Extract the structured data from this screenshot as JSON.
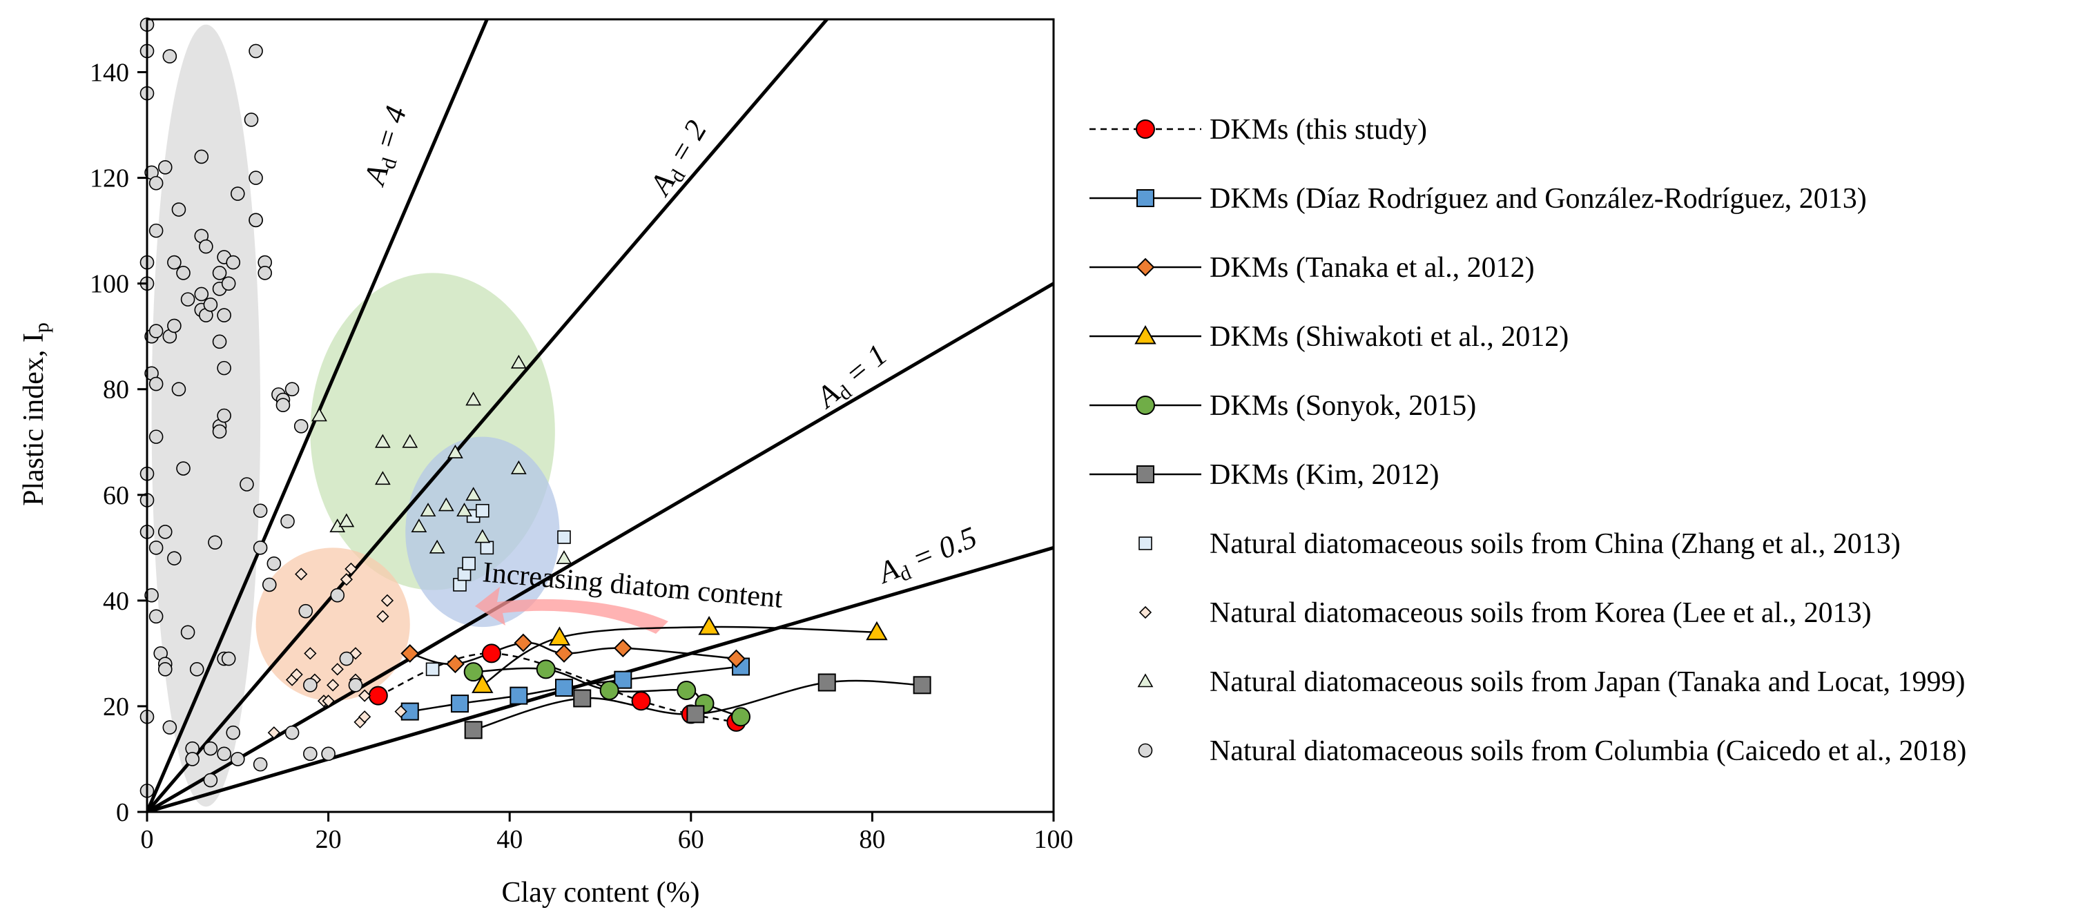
{
  "chart_data": {
    "type": "scatter",
    "xlabel": "Clay content (%)",
    "ylabel": "Plastic index, I",
    "ylabel_sub": "p",
    "xlim": [
      0,
      100
    ],
    "ylim": [
      0,
      150
    ],
    "xticks": [
      "0",
      "20",
      "40",
      "60",
      "80",
      "100"
    ],
    "yticks": [
      "0",
      "20",
      "40",
      "60",
      "80",
      "100",
      "120",
      "140"
    ],
    "activity_lines": [
      {
        "name": "ad-4",
        "slope": 4,
        "label": "A",
        "sub": "d",
        "rest": " = 4"
      },
      {
        "name": "ad-2",
        "slope": 2,
        "label": "A",
        "sub": "d",
        "rest": " = 2"
      },
      {
        "name": "ad-1",
        "slope": 1,
        "label": "A",
        "sub": "d",
        "rest": " = 1"
      },
      {
        "name": "ad-0-5",
        "slope": 0.5,
        "label": "A",
        "sub": "d",
        "rest": " = 0.5"
      }
    ],
    "annotation": "Increasing diatom content",
    "shaded_regions": [
      {
        "name": "columbia-region",
        "cx": 6.5,
        "cy": 75,
        "rx": 6,
        "ry": 74,
        "color": "#d9d9d9"
      },
      {
        "name": "japan-region",
        "cx": 31.5,
        "cy": 72,
        "rx": 13.5,
        "ry": 30,
        "color": "#c9e3b8"
      },
      {
        "name": "china-region",
        "cx": 37,
        "cy": 53,
        "rx": 8.5,
        "ry": 18,
        "color": "#b4c7e7"
      },
      {
        "name": "korea-region",
        "cx": 20.5,
        "cy": 35.5,
        "rx": 8.5,
        "ry": 14.5,
        "color": "#f8cbad"
      }
    ],
    "series": [
      {
        "name": "DKMs (this study)",
        "marker": "circle",
        "fill": "#ff0000",
        "line": "dashed",
        "points": [
          [
            25.5,
            22
          ],
          [
            38,
            30
          ],
          [
            54.5,
            21
          ],
          [
            60,
            18.5
          ],
          [
            65,
            17
          ]
        ]
      },
      {
        "name": "DKMs (Díaz Rodríguez and González-Rodríguez, 2013)",
        "marker": "square",
        "fill": "#5b9bd5",
        "line": "solid",
        "points": [
          [
            29,
            19
          ],
          [
            34.5,
            20.5
          ],
          [
            41,
            22
          ],
          [
            46,
            23.5
          ],
          [
            52.5,
            25
          ],
          [
            65.5,
            27.5
          ]
        ]
      },
      {
        "name": "DKMs (Tanaka et al., 2012)",
        "marker": "diamond",
        "fill": "#ed7d31",
        "line": "solid",
        "points": [
          [
            29,
            30
          ],
          [
            34,
            28
          ],
          [
            41.5,
            32
          ],
          [
            46,
            30
          ],
          [
            52.5,
            31
          ],
          [
            65,
            29
          ]
        ]
      },
      {
        "name": "DKMs (Shiwakoti et al., 2012)",
        "marker": "triangle",
        "fill": "#ffc000",
        "line": "solid",
        "points": [
          [
            37,
            24
          ],
          [
            45.5,
            33
          ],
          [
            62,
            35
          ],
          [
            80.5,
            34
          ]
        ]
      },
      {
        "name": "DKMs (Sonyok, 2015)",
        "marker": "circle",
        "fill": "#70ad47",
        "line": "solid",
        "points": [
          [
            36,
            26.5
          ],
          [
            44,
            27
          ],
          [
            51,
            23
          ],
          [
            59.5,
            23
          ],
          [
            61.5,
            20.5
          ],
          [
            65.5,
            18
          ]
        ]
      },
      {
        "name": "DKMs (Kim, 2012)",
        "marker": "square",
        "fill": "#7f7f7f",
        "line": "solid",
        "points": [
          [
            36,
            15.5
          ],
          [
            48,
            21.5
          ],
          [
            60.5,
            18.5
          ],
          [
            75,
            24.5
          ],
          [
            85.5,
            24
          ]
        ]
      },
      {
        "name": "Natural diatomaceous soils from China (Zhang et al., 2013)",
        "marker": "square-small",
        "fill": "#ddebf7",
        "line": "none",
        "points": [
          [
            31.5,
            27
          ],
          [
            34.5,
            43
          ],
          [
            35,
            45
          ],
          [
            35.5,
            47
          ],
          [
            36,
            56
          ],
          [
            37,
            57
          ],
          [
            37.5,
            50
          ],
          [
            46,
            52
          ]
        ]
      },
      {
        "name": "Natural diatomaceous soils from Korea (Lee et al., 2013)",
        "marker": "diamond-small",
        "fill": "#fbe5d6",
        "line": "none",
        "points": [
          [
            14,
            15
          ],
          [
            16,
            25
          ],
          [
            16.5,
            26
          ],
          [
            17,
            45
          ],
          [
            18,
            30
          ],
          [
            18.5,
            25
          ],
          [
            19.5,
            21
          ],
          [
            20,
            21
          ],
          [
            20.5,
            24
          ],
          [
            21,
            27
          ],
          [
            22,
            29
          ],
          [
            22,
            44
          ],
          [
            22.5,
            46
          ],
          [
            23,
            25
          ],
          [
            23,
            30
          ],
          [
            23.5,
            17
          ],
          [
            24,
            18
          ],
          [
            24,
            22
          ],
          [
            26,
            37
          ],
          [
            26.5,
            40
          ],
          [
            28,
            19
          ]
        ]
      },
      {
        "name": "Natural diatomaceous soils from Japan (Tanaka and Locat, 1999)",
        "marker": "triangle-small",
        "fill": "#e2efda",
        "line": "none",
        "points": [
          [
            19,
            75
          ],
          [
            21,
            54
          ],
          [
            22,
            55
          ],
          [
            26,
            70
          ],
          [
            26,
            63
          ],
          [
            29,
            70
          ],
          [
            30,
            54
          ],
          [
            31,
            57
          ],
          [
            32,
            50
          ],
          [
            33,
            58
          ],
          [
            34,
            68
          ],
          [
            35,
            57
          ],
          [
            36,
            78
          ],
          [
            36,
            60
          ],
          [
            37,
            52
          ],
          [
            41,
            85
          ],
          [
            41,
            65
          ],
          [
            46,
            48
          ]
        ]
      },
      {
        "name": "Natural diatomaceous soils from Columbia (Caicedo et al., 2018)",
        "marker": "circle-small",
        "fill": "#d9d9d9",
        "line": "none",
        "points": [
          [
            0,
            149
          ],
          [
            0,
            144
          ],
          [
            0,
            136
          ],
          [
            0,
            104
          ],
          [
            0,
            100
          ],
          [
            0,
            64
          ],
          [
            0,
            59
          ],
          [
            0,
            53
          ],
          [
            0,
            18
          ],
          [
            0,
            4
          ],
          [
            0.5,
            121
          ],
          [
            0.5,
            90
          ],
          [
            0.5,
            83
          ],
          [
            0.5,
            41
          ],
          [
            1,
            119
          ],
          [
            1,
            110
          ],
          [
            1,
            91
          ],
          [
            1,
            81
          ],
          [
            1,
            71
          ],
          [
            1,
            50
          ],
          [
            1,
            37
          ],
          [
            1.5,
            30
          ],
          [
            2,
            122
          ],
          [
            2,
            53
          ],
          [
            2,
            28
          ],
          [
            2,
            27
          ],
          [
            2.5,
            143
          ],
          [
            2.5,
            90
          ],
          [
            2.5,
            16
          ],
          [
            3,
            104
          ],
          [
            3,
            92
          ],
          [
            3,
            48
          ],
          [
            3.5,
            114
          ],
          [
            3.5,
            80
          ],
          [
            4,
            102
          ],
          [
            4,
            65
          ],
          [
            4.5,
            97
          ],
          [
            4.5,
            34
          ],
          [
            5,
            12
          ],
          [
            5,
            10
          ],
          [
            5.5,
            27
          ],
          [
            6,
            124
          ],
          [
            6,
            109
          ],
          [
            6,
            98
          ],
          [
            6,
            95
          ],
          [
            6.5,
            107
          ],
          [
            6.5,
            94
          ],
          [
            7,
            96
          ],
          [
            7,
            12
          ],
          [
            7,
            6
          ],
          [
            7.5,
            51
          ],
          [
            8,
            102
          ],
          [
            8,
            99
          ],
          [
            8,
            89
          ],
          [
            8,
            73
          ],
          [
            8,
            72
          ],
          [
            8.5,
            105
          ],
          [
            8.5,
            94
          ],
          [
            8.5,
            75
          ],
          [
            8.5,
            84
          ],
          [
            8.5,
            29
          ],
          [
            8.5,
            11
          ],
          [
            9,
            100
          ],
          [
            9,
            29
          ],
          [
            9.5,
            104
          ],
          [
            9.5,
            15
          ],
          [
            10,
            117
          ],
          [
            10,
            10
          ],
          [
            11,
            62
          ],
          [
            11.5,
            131
          ],
          [
            12,
            144
          ],
          [
            12,
            112
          ],
          [
            12,
            120
          ],
          [
            12,
            112
          ],
          [
            12.5,
            57
          ],
          [
            12.5,
            50
          ],
          [
            12.5,
            9
          ],
          [
            13,
            104
          ],
          [
            13,
            102
          ],
          [
            13.5,
            43
          ],
          [
            14,
            47
          ],
          [
            14.5,
            79
          ],
          [
            15,
            78
          ],
          [
            15,
            77
          ],
          [
            15.5,
            55
          ],
          [
            16,
            80
          ],
          [
            16,
            15
          ],
          [
            17,
            73
          ],
          [
            17.5,
            38
          ],
          [
            18,
            24
          ],
          [
            18,
            11
          ],
          [
            20,
            11
          ],
          [
            21,
            41
          ],
          [
            22,
            29
          ],
          [
            23,
            24
          ]
        ]
      }
    ]
  }
}
